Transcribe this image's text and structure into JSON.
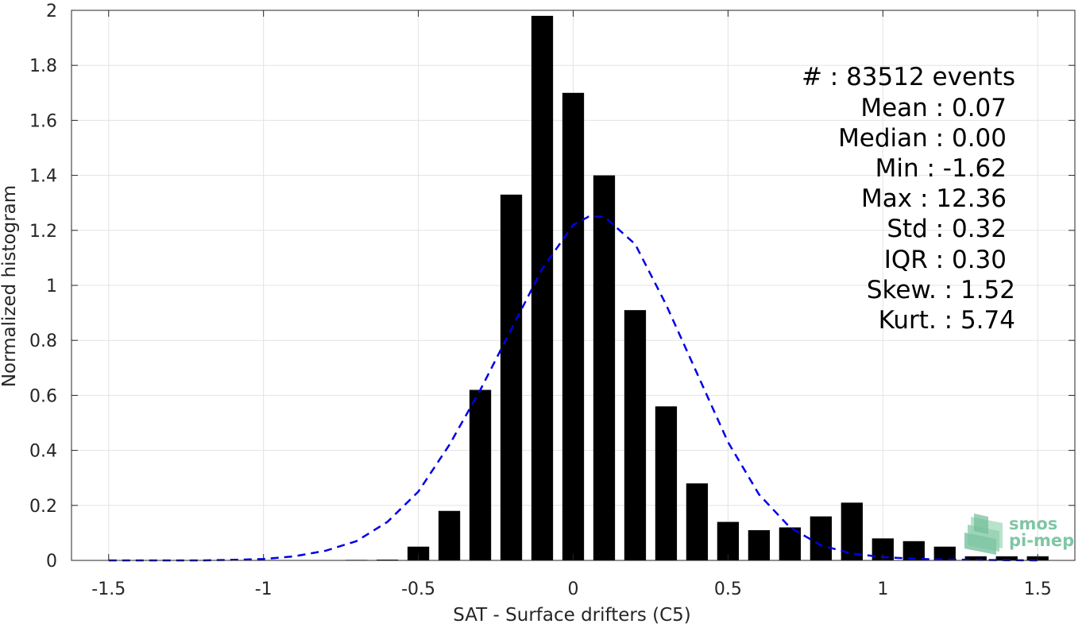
{
  "chart_data": {
    "type": "bar",
    "xlabel": "SAT - Surface drifters (C5)",
    "ylabel": "Normalized histogram",
    "xlim": [
      -1.62,
      1.62
    ],
    "ylim": [
      0,
      2
    ],
    "grid": true,
    "xticks": [
      -1.5,
      -1,
      -0.5,
      0,
      0.5,
      1,
      1.5
    ],
    "xtick_labels": [
      "-1.5",
      "-1",
      "-0.5",
      "0",
      "0.5",
      "1",
      "1.5"
    ],
    "yticks": [
      0,
      0.2,
      0.4,
      0.6,
      0.8,
      1,
      1.2,
      1.4,
      1.6,
      1.8,
      2
    ],
    "ytick_labels": [
      "0",
      "0.2",
      "0.4",
      "0.6",
      "0.8",
      "1",
      "1.2",
      "1.4",
      "1.6",
      "1.8",
      "2"
    ],
    "bar_width": 0.07,
    "bar_color": "#000000",
    "bars": {
      "x": [
        -1.5,
        -1.4,
        -1.3,
        -1.2,
        -1.1,
        -1.0,
        -0.9,
        -0.8,
        -0.7,
        -0.6,
        -0.5,
        -0.4,
        -0.3,
        -0.2,
        -0.1,
        0.0,
        0.1,
        0.2,
        0.3,
        0.4,
        0.5,
        0.6,
        0.7,
        0.8,
        0.9,
        1.0,
        1.1,
        1.2,
        1.3,
        1.4,
        1.5
      ],
      "values": [
        0,
        0,
        0,
        0,
        0,
        0,
        0,
        0.001,
        0.002,
        0.003,
        0.05,
        0.18,
        0.62,
        1.33,
        1.98,
        1.7,
        1.4,
        0.91,
        0.56,
        0.28,
        0.14,
        0.11,
        0.12,
        0.16,
        0.21,
        0.08,
        0.07,
        0.05,
        0.015,
        0.015,
        0.015
      ]
    },
    "fit": {
      "style": "dashed",
      "color": "#0000e6",
      "x": [
        -1.5,
        -1.4,
        -1.3,
        -1.2,
        -1.1,
        -1.0,
        -0.9,
        -0.8,
        -0.7,
        -0.6,
        -0.5,
        -0.4,
        -0.3,
        -0.2,
        -0.1,
        0.0,
        0.05,
        0.1,
        0.2,
        0.3,
        0.4,
        0.5,
        0.6,
        0.7,
        0.8,
        0.9,
        1.0,
        1.1,
        1.2,
        1.3,
        1.4,
        1.5
      ],
      "values": [
        0.0,
        0.0,
        0.0,
        0.0,
        0.002,
        0.005,
        0.015,
        0.035,
        0.07,
        0.14,
        0.25,
        0.42,
        0.62,
        0.84,
        1.06,
        1.22,
        1.25,
        1.25,
        1.15,
        0.93,
        0.68,
        0.43,
        0.24,
        0.12,
        0.055,
        0.025,
        0.012,
        0.006,
        0.003,
        0.002,
        0.001,
        0.0
      ]
    },
    "stats": [
      {
        "text": "#  : 83512 events"
      },
      {
        "text": "Mean : 0.07"
      },
      {
        "text": "Median : 0.00"
      },
      {
        "text": "Min : -1.62"
      },
      {
        "text": "Max : 12.36"
      },
      {
        "text": "Std : 0.32"
      },
      {
        "text": "IQR : 0.30"
      },
      {
        "text": "Skew. : 1.52"
      },
      {
        "text": "Kurt. : 5.74"
      }
    ]
  },
  "logo": {
    "line1": "smos",
    "line2": "pi-mep",
    "color": "#7fc6a4"
  }
}
